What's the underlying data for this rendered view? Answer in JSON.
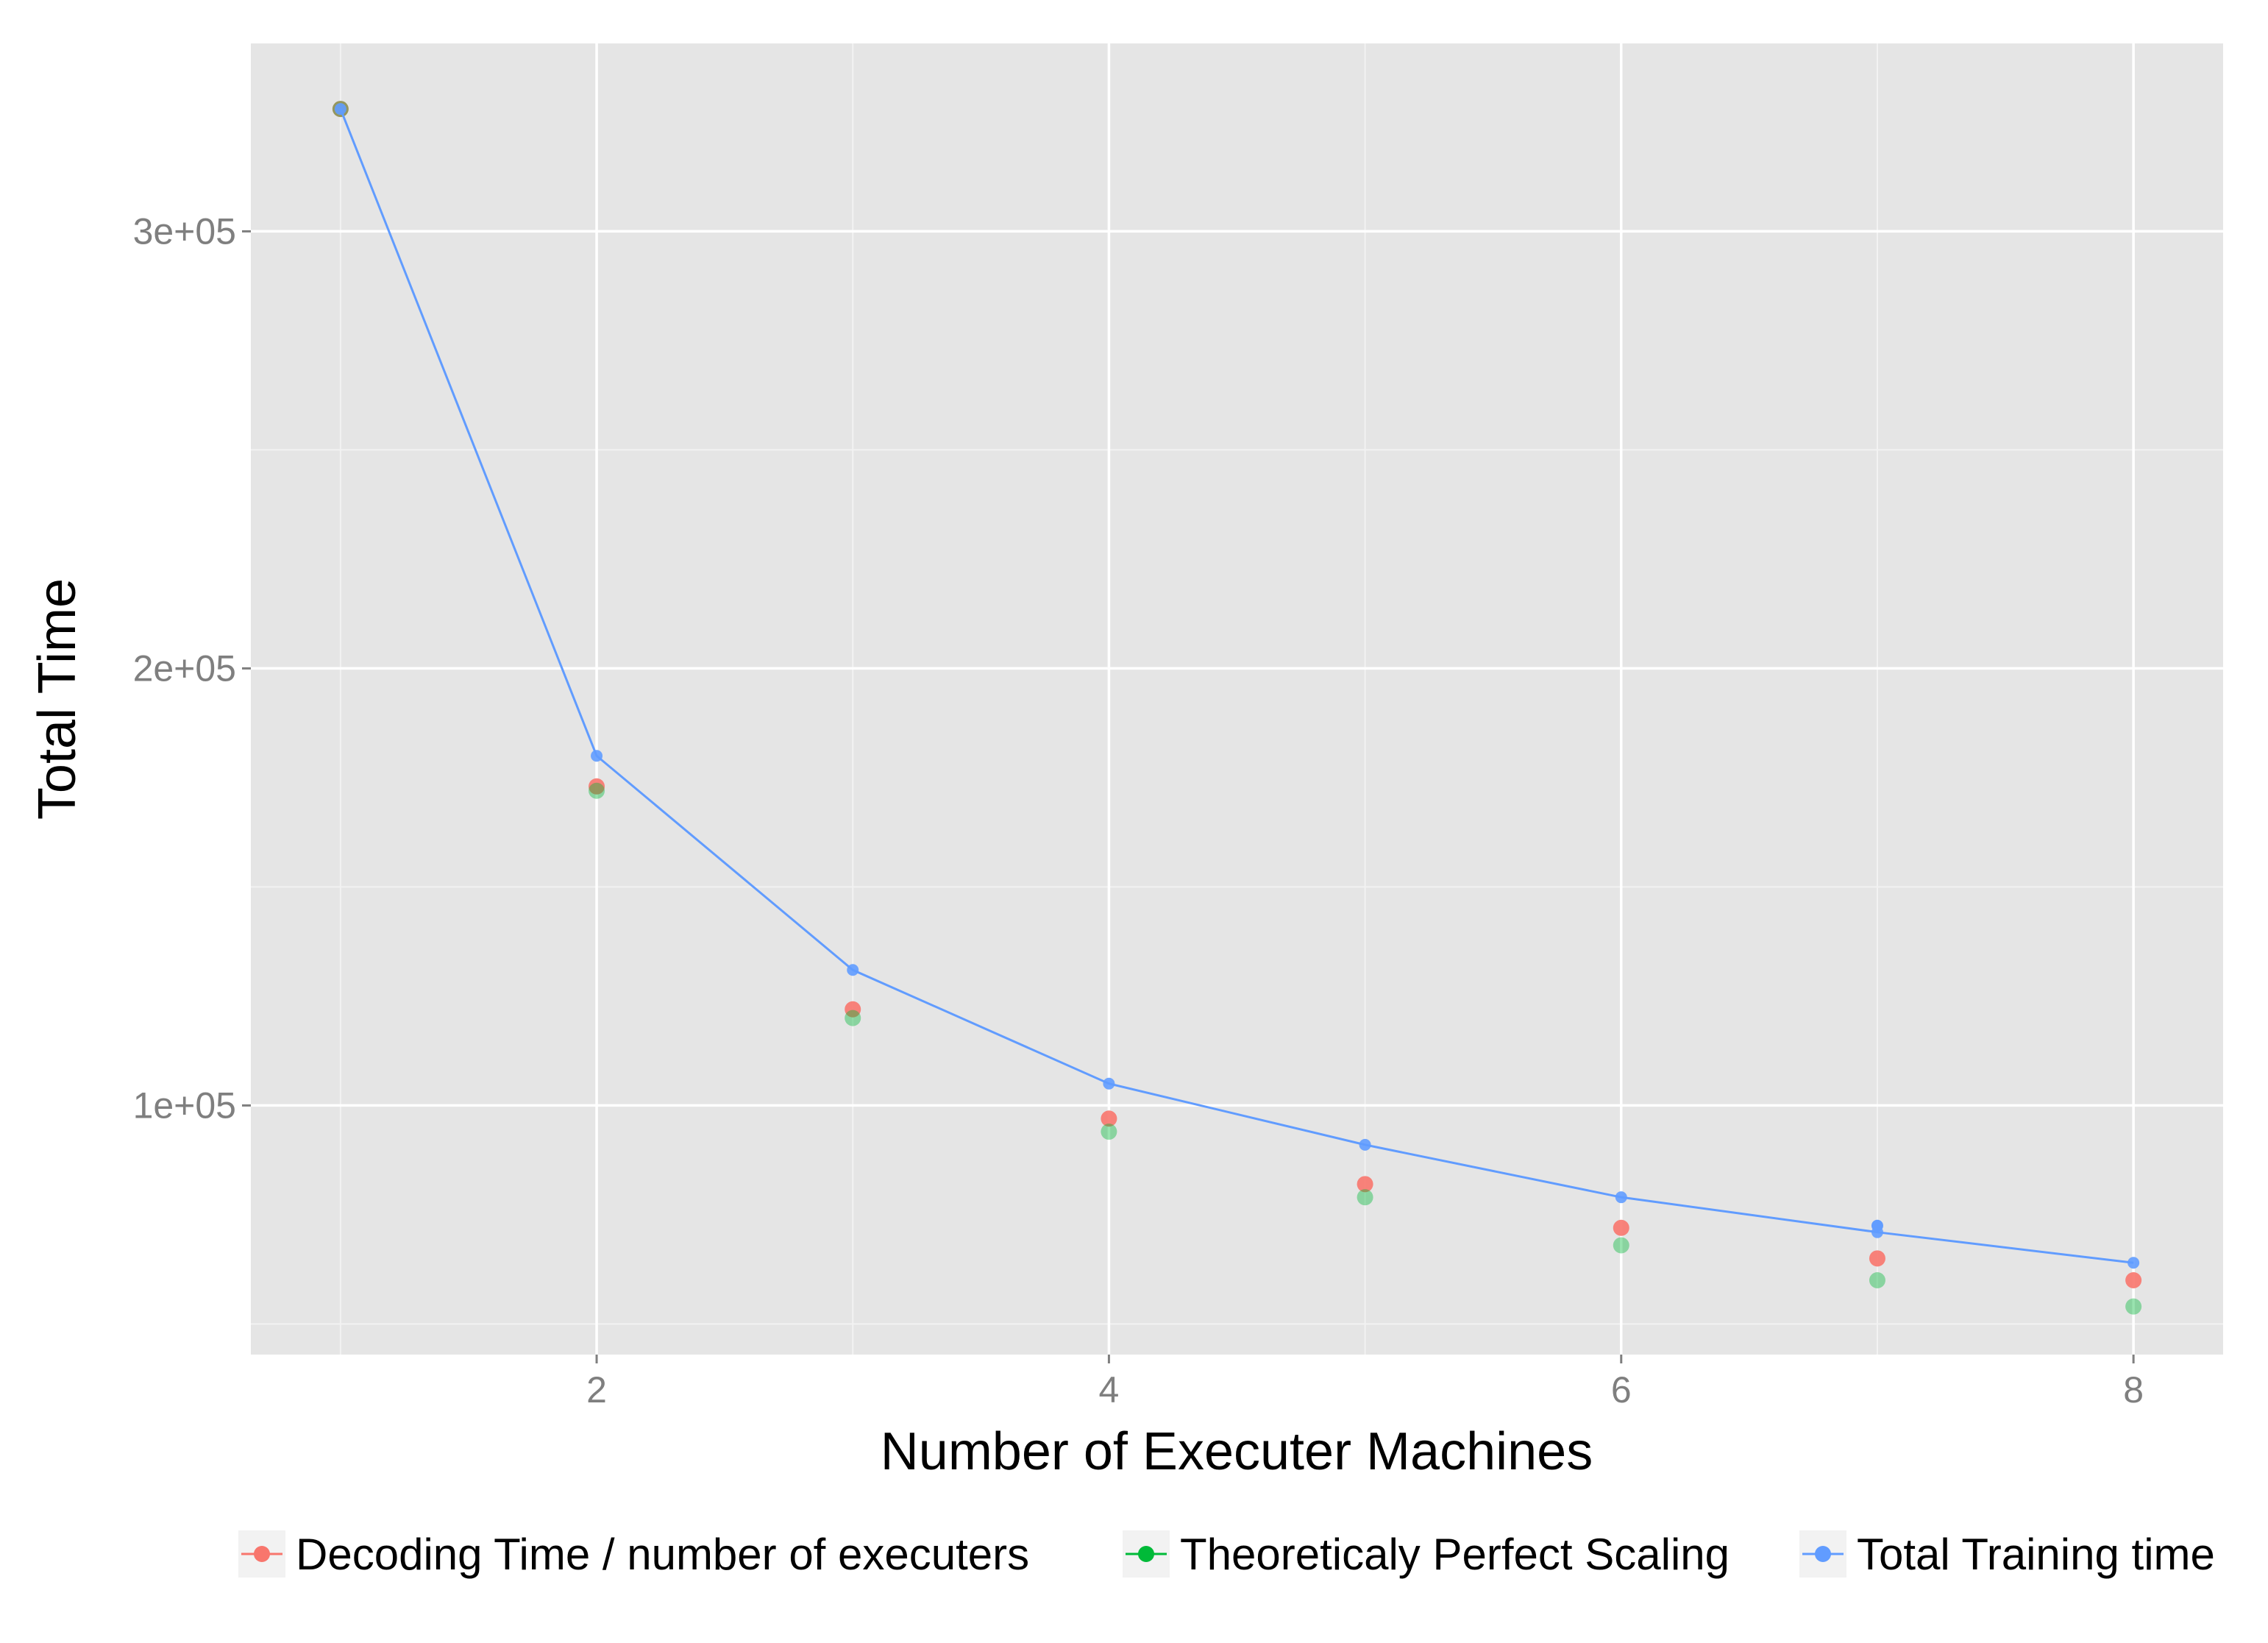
{
  "chart_data": {
    "type": "scatter",
    "xlabel": "Number of Executer Machines",
    "ylabel": "Total Time",
    "xlim": [
      0.65,
      8.35
    ],
    "ylim": [
      43000,
      343000
    ],
    "x_ticks": [
      2,
      4,
      6,
      8
    ],
    "x_tick_labels": [
      "2",
      "4",
      "6",
      "8"
    ],
    "y_ticks": [
      100000,
      200000,
      300000
    ],
    "y_tick_labels": [
      "1e+05",
      "2e+05",
      "3e+05"
    ],
    "grid": true,
    "background": "#e5e5e5",
    "legend_position": "bottom",
    "series": [
      {
        "name": "Decoding Time / number of executers",
        "color": "#f8766d",
        "marker": "point",
        "line": false,
        "x": [
          1,
          2,
          3,
          4,
          5,
          6,
          7,
          8
        ],
        "y": [
          328000,
          173000,
          122000,
          97000,
          82000,
          72000,
          65000,
          60000
        ]
      },
      {
        "name": "Theoreticaly Perfect Scaling",
        "color": "#00ba38",
        "marker": "point",
        "line": false,
        "x": [
          1,
          2,
          3,
          4,
          5,
          6,
          7,
          8
        ],
        "y": [
          328000,
          172000,
          120000,
          94000,
          79000,
          68000,
          60000,
          54000
        ]
      },
      {
        "name": "Total Training time",
        "color": "#619cff",
        "marker": "point",
        "line": true,
        "x": [
          1,
          2,
          3,
          4,
          5,
          6,
          7,
          8
        ],
        "y": [
          328000,
          180000,
          131000,
          105000,
          91000,
          79000,
          71000,
          64000
        ]
      }
    ],
    "extra_points": [
      {
        "series": "Total Training time",
        "x": 7,
        "y": 72500
      }
    ]
  }
}
